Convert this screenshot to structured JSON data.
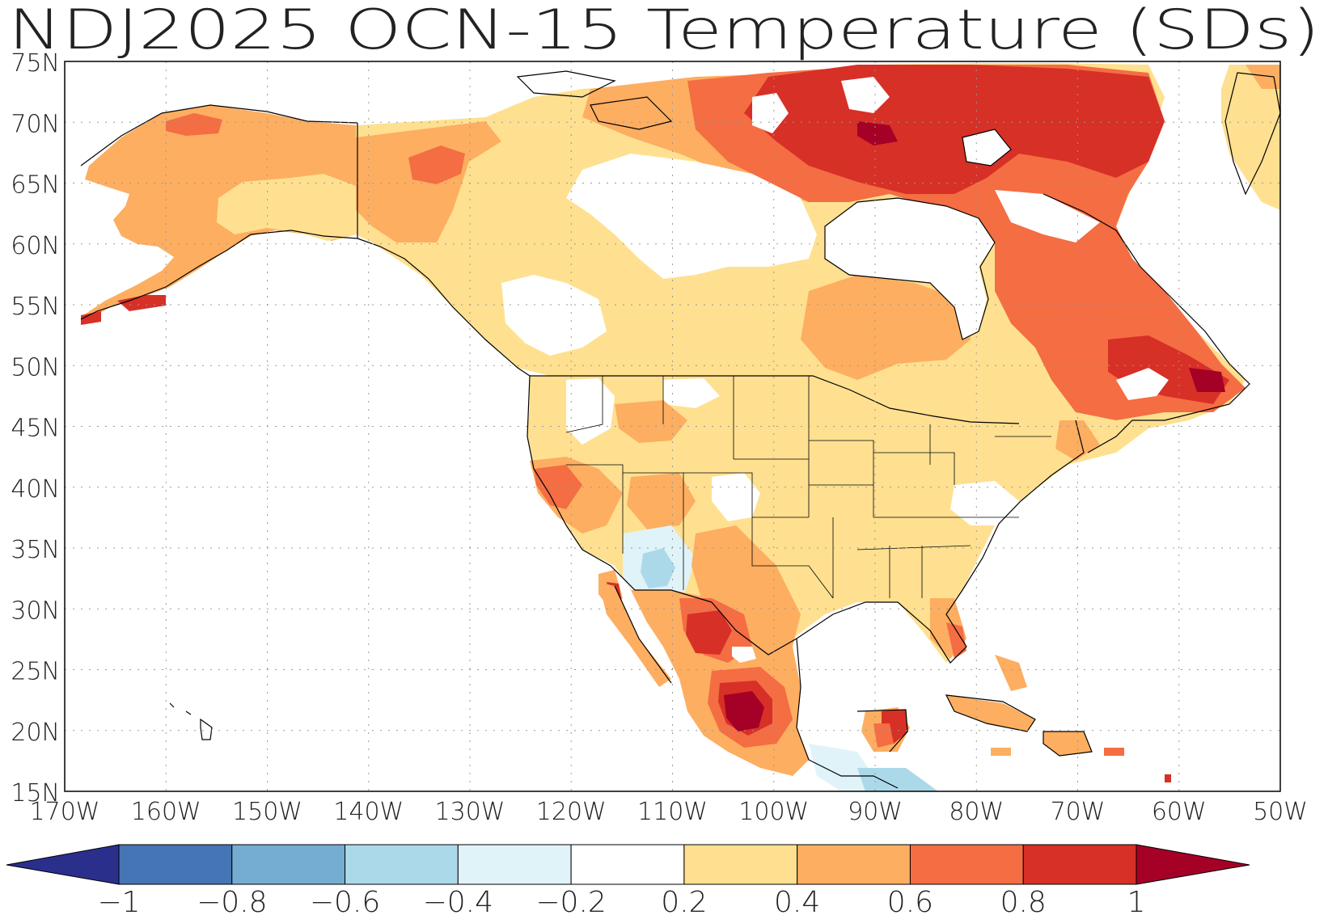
{
  "title": "NDJ2025 OCN-15 Temperature (SDs)",
  "map": {
    "lon_range": [
      -170,
      -50
    ],
    "lat_range": [
      15,
      75
    ],
    "lon_ticks": [
      -170,
      -160,
      -150,
      -140,
      -130,
      -120,
      -110,
      -100,
      -90,
      -80,
      -70,
      -60,
      -50
    ],
    "lat_ticks": [
      15,
      20,
      25,
      30,
      35,
      40,
      45,
      50,
      55,
      60,
      65,
      70,
      75
    ],
    "lon_labels": [
      "170W",
      "160W",
      "150W",
      "140W",
      "130W",
      "120W",
      "110W",
      "100W",
      "90W",
      "80W",
      "70W",
      "60W",
      "50W"
    ],
    "lat_labels": [
      "15N",
      "20N",
      "25N",
      "30N",
      "35N",
      "40N",
      "45N",
      "50N",
      "55N",
      "60N",
      "65N",
      "70N",
      "75N"
    ],
    "grid": "dotted"
  },
  "colorbar": {
    "labels": [
      "−1",
      "−0.8",
      "−0.6",
      "−0.4",
      "−0.2",
      "0.2",
      "0.4",
      "0.6",
      "0.8",
      "1"
    ],
    "low_arrow_color": "#2b2f8c",
    "colors": [
      "#4575b4",
      "#74add1",
      "#abd9e9",
      "#e0f3f8",
      "#ffffff",
      "#fee090",
      "#fdae61",
      "#f46d43",
      "#d73027"
    ],
    "high_arrow_color": "#a50026"
  }
}
